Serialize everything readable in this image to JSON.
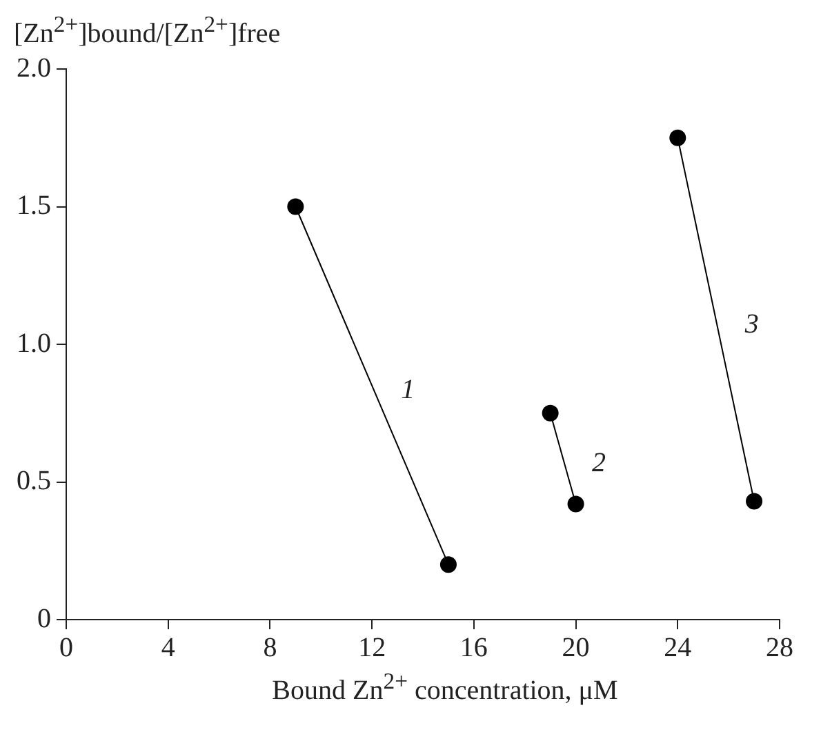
{
  "chart_data": {
    "type": "line",
    "xlabel": "Bound Zn$^{2+}$ concentration, μM",
    "ylabel": "[Zn$^{2+}$]bound/[Zn$^{2+}$]free",
    "series": [
      {
        "name": "1",
        "color": "#000000",
        "x": [
          9,
          15
        ],
        "values": [
          1.5,
          0.2
        ]
      },
      {
        "name": "2",
        "color": "#000000",
        "x": [
          19,
          20
        ],
        "values": [
          0.75,
          0.42
        ]
      },
      {
        "name": "3",
        "color": "#000000",
        "x": [
          24,
          27
        ],
        "values": [
          1.75,
          0.43
        ]
      }
    ],
    "xlim": [
      0,
      28
    ],
    "xticks": [
      0,
      4,
      8,
      12,
      16,
      20,
      24,
      28
    ],
    "ylim": [
      0,
      2
    ],
    "yticks": [
      0,
      0.5,
      {
        "value": 1,
        "label": "1.0"
      },
      1.5,
      {
        "value": 2,
        "label": "2.0"
      }
    ],
    "grid": false,
    "legend": false,
    "marker": "circle",
    "line_style": "solid"
  }
}
